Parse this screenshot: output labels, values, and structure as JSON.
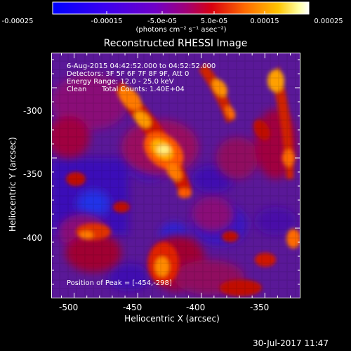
{
  "colorbar": {
    "ticks": [
      "-0.00025",
      "-0.00015",
      "-5.0e-05",
      "5.0e-05",
      "0.00015",
      "0.00025"
    ],
    "unit_label": "(photons cm⁻² s⁻¹ asec⁻²)"
  },
  "chart_data": {
    "type": "heatmap",
    "title": "Reconstructed RHESSI Image",
    "xlabel": "Heliocentric X (arcsec)",
    "ylabel": "Heliocentric Y (arcsec)",
    "x_ticks": [
      "-500",
      "-450",
      "-400",
      "-350"
    ],
    "y_ticks": [
      "-300",
      "-350",
      "-400"
    ],
    "xlim": [
      -518,
      -322
    ],
    "ylim": [
      -450,
      -275
    ],
    "colorbar_range": [
      -0.00025,
      0.00025
    ],
    "peak": [
      -454,
      -298
    ],
    "annotations": [
      "6-Aug-2015 04:42:52.000 to 04:52:52.000",
      "Detectors: 3F 5F 6F 7F 8F 9F, Att 0",
      "Energy Range: 12.0 - 25.0 keV",
      "Clean",
      "Total Counts: 1.40E+04"
    ],
    "peak_label": "Position of Peak = [-454,-298]"
  },
  "footer": {
    "timestamp": "30-Jul-2017 11:47"
  }
}
